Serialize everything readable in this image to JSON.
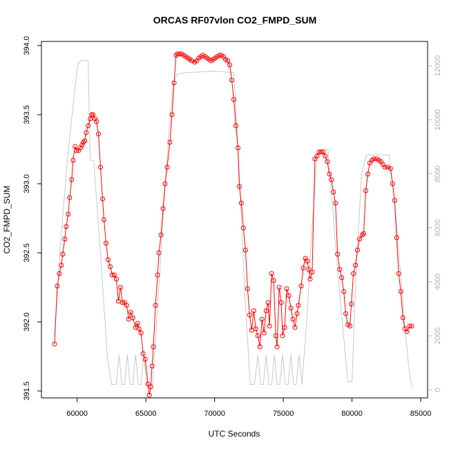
{
  "chart_data": {
    "type": "line",
    "title": "ORCAS RF07vlon CO2_FMPD_SUM",
    "xlabel": "UTC Seconds",
    "ylabel": "CO2_FMPD_SUM",
    "xlim": [
      57400,
      85500
    ],
    "ylim": [
      391.45,
      394.03
    ],
    "y2lim": [
      -300,
      12900
    ],
    "x_ticks": [
      60000,
      65000,
      70000,
      75000,
      80000,
      85000
    ],
    "y_ticks": [
      391.5,
      392.0,
      392.5,
      393.0,
      393.5,
      394.0
    ],
    "y_tick_labels": [
      "391.5",
      "392.0",
      "392.5",
      "393.0",
      "393.5",
      "394.0"
    ],
    "y2_ticks": [
      0,
      2000,
      4000,
      6000,
      8000,
      10000,
      12000
    ],
    "colors": {
      "primary": "#ff0000",
      "secondary": "#c8c8c8"
    },
    "series": [
      {
        "color": "#ff0000",
        "marker": "open-circle",
        "points": [
          [
            58350,
            391.84
          ],
          [
            58550,
            392.26
          ],
          [
            58700,
            392.35
          ],
          [
            58850,
            392.41
          ],
          [
            58950,
            392.49
          ],
          [
            59100,
            392.6
          ],
          [
            59200,
            392.69
          ],
          [
            59350,
            392.78
          ],
          [
            59450,
            392.9
          ],
          [
            59600,
            393.03
          ],
          [
            59700,
            393.17
          ],
          [
            59850,
            393.27
          ],
          [
            59950,
            393.24
          ],
          [
            60100,
            393.24
          ],
          [
            60250,
            393.26
          ],
          [
            60350,
            393.28
          ],
          [
            60450,
            393.3
          ],
          [
            60550,
            393.31
          ],
          [
            60650,
            393.37
          ],
          [
            60800,
            393.42
          ],
          [
            60950,
            393.47
          ],
          [
            61050,
            393.5
          ],
          [
            61150,
            393.5
          ],
          [
            61300,
            393.47
          ],
          [
            61400,
            393.45
          ],
          [
            61550,
            393.36
          ],
          [
            61700,
            393.12
          ],
          [
            61850,
            392.89
          ],
          [
            61950,
            392.74
          ],
          [
            62100,
            392.57
          ],
          [
            62250,
            392.45
          ],
          [
            62400,
            392.4
          ],
          [
            62550,
            392.34
          ],
          [
            62700,
            392.34
          ],
          [
            62850,
            392.31
          ],
          [
            63000,
            392.15
          ],
          [
            63150,
            392.25
          ],
          [
            63300,
            392.14
          ],
          [
            63450,
            392.14
          ],
          [
            63600,
            392.12
          ],
          [
            63750,
            392.02
          ],
          [
            63900,
            392.07
          ],
          [
            64050,
            392.03
          ],
          [
            64250,
            391.96
          ],
          [
            64400,
            391.99
          ],
          [
            64500,
            391.95
          ],
          [
            64650,
            391.92
          ],
          [
            64800,
            391.77
          ],
          [
            64950,
            391.73
          ],
          [
            65150,
            391.55
          ],
          [
            65250,
            391.47
          ],
          [
            65350,
            391.53
          ],
          [
            65450,
            391.68
          ],
          [
            65550,
            391.82
          ],
          [
            65700,
            392.12
          ],
          [
            65850,
            392.34
          ],
          [
            65950,
            392.5
          ],
          [
            66100,
            392.63
          ],
          [
            66250,
            392.82
          ],
          [
            66400,
            393.0
          ],
          [
            66550,
            393.12
          ],
          [
            66750,
            393.3
          ],
          [
            66900,
            393.5
          ],
          [
            67050,
            393.73
          ],
          [
            67200,
            393.93
          ],
          [
            67300,
            393.94
          ],
          [
            67450,
            393.94
          ],
          [
            67600,
            393.94
          ],
          [
            67750,
            393.93
          ],
          [
            67900,
            393.92
          ],
          [
            68050,
            393.91
          ],
          [
            68200,
            393.9
          ],
          [
            68350,
            393.89
          ],
          [
            68550,
            393.88
          ],
          [
            68700,
            393.89
          ],
          [
            68850,
            393.91
          ],
          [
            69000,
            393.92
          ],
          [
            69150,
            393.93
          ],
          [
            69300,
            393.92
          ],
          [
            69450,
            393.91
          ],
          [
            69600,
            393.9
          ],
          [
            69750,
            393.89
          ],
          [
            69900,
            393.9
          ],
          [
            70050,
            393.91
          ],
          [
            70200,
            393.92
          ],
          [
            70350,
            393.93
          ],
          [
            70500,
            393.93
          ],
          [
            70650,
            393.92
          ],
          [
            70800,
            393.9
          ],
          [
            70950,
            393.89
          ],
          [
            71100,
            393.86
          ],
          [
            71250,
            393.75
          ],
          [
            71400,
            393.61
          ],
          [
            71550,
            393.42
          ],
          [
            71700,
            393.26
          ],
          [
            71800,
            392.98
          ],
          [
            71950,
            392.86
          ],
          [
            72100,
            392.68
          ],
          [
            72250,
            392.52
          ],
          [
            72400,
            392.24
          ],
          [
            72550,
            392.05
          ],
          [
            72700,
            391.94
          ],
          [
            72850,
            392.08
          ],
          [
            73000,
            391.95
          ],
          [
            73150,
            391.9
          ],
          [
            73300,
            391.82
          ],
          [
            73450,
            392.02
          ],
          [
            73600,
            391.92
          ],
          [
            73750,
            392.08
          ],
          [
            73900,
            392.14
          ],
          [
            74000,
            391.97
          ],
          [
            74150,
            392.35
          ],
          [
            74300,
            392.3
          ],
          [
            74450,
            391.9
          ],
          [
            74550,
            391.82
          ],
          [
            74700,
            392.25
          ],
          [
            74850,
            392.14
          ],
          [
            74950,
            391.9
          ],
          [
            75100,
            391.96
          ],
          [
            75250,
            392.24
          ],
          [
            75400,
            392.19
          ],
          [
            75550,
            392.1
          ],
          [
            75700,
            392.02
          ],
          [
            75850,
            391.96
          ],
          [
            76000,
            392.06
          ],
          [
            76100,
            392.12
          ],
          [
            76300,
            392.26
          ],
          [
            76450,
            392.39
          ],
          [
            76600,
            392.46
          ],
          [
            76750,
            392.44
          ],
          [
            76850,
            392.38
          ],
          [
            76950,
            392.31
          ],
          [
            77100,
            392.36
          ],
          [
            77300,
            393.18
          ],
          [
            77450,
            393.2
          ],
          [
            77600,
            393.23
          ],
          [
            77750,
            393.23
          ],
          [
            77900,
            393.23
          ],
          [
            78050,
            393.2
          ],
          [
            78200,
            393.16
          ],
          [
            78350,
            393.07
          ],
          [
            78500,
            393.03
          ],
          [
            78650,
            392.94
          ],
          [
            78800,
            392.86
          ],
          [
            78950,
            392.49
          ],
          [
            79100,
            392.38
          ],
          [
            79250,
            392.32
          ],
          [
            79400,
            392.22
          ],
          [
            79550,
            392.06
          ],
          [
            79700,
            391.98
          ],
          [
            79850,
            391.97
          ],
          [
            79950,
            392.13
          ],
          [
            80100,
            392.35
          ],
          [
            80250,
            392.41
          ],
          [
            80400,
            392.52
          ],
          [
            80550,
            392.6
          ],
          [
            80750,
            392.63
          ],
          [
            80850,
            392.64
          ],
          [
            81000,
            392.95
          ],
          [
            81150,
            393.07
          ],
          [
            81300,
            393.15
          ],
          [
            81450,
            393.17
          ],
          [
            81600,
            393.18
          ],
          [
            81800,
            393.18
          ],
          [
            81950,
            393.17
          ],
          [
            82100,
            393.16
          ],
          [
            82250,
            393.14
          ],
          [
            82400,
            393.12
          ],
          [
            82600,
            393.12
          ],
          [
            82800,
            393.11
          ],
          [
            82950,
            393.0
          ],
          [
            83100,
            392.88
          ],
          [
            83250,
            392.61
          ],
          [
            83400,
            392.35
          ],
          [
            83550,
            392.22
          ],
          [
            83700,
            392.03
          ],
          [
            83850,
            391.95
          ],
          [
            84000,
            391.93
          ],
          [
            84200,
            391.97
          ],
          [
            84350,
            391.97
          ]
        ]
      },
      {
        "color": "#c8c8c8",
        "marker": "none",
        "axis": "right",
        "points": [
          [
            58350,
            2000
          ],
          [
            58800,
            5500
          ],
          [
            59300,
            8600
          ],
          [
            59800,
            11000
          ],
          [
            60050,
            12100
          ],
          [
            60300,
            12200
          ],
          [
            60800,
            12200
          ],
          [
            60950,
            8500
          ],
          [
            61200,
            8500
          ],
          [
            61700,
            5000
          ],
          [
            62200,
            1200
          ],
          [
            62500,
            200
          ],
          [
            62850,
            200
          ],
          [
            63050,
            1300
          ],
          [
            63250,
            200
          ],
          [
            63450,
            200
          ],
          [
            63650,
            1300
          ],
          [
            63850,
            200
          ],
          [
            64050,
            200
          ],
          [
            64250,
            1300
          ],
          [
            64450,
            200
          ],
          [
            64650,
            200
          ],
          [
            64850,
            1300
          ],
          [
            65050,
            200
          ],
          [
            65500,
            200
          ],
          [
            65900,
            3500
          ],
          [
            66300,
            6800
          ],
          [
            66700,
            9700
          ],
          [
            67000,
            11400
          ],
          [
            67300,
            11700
          ],
          [
            68000,
            11750
          ],
          [
            70000,
            11800
          ],
          [
            71400,
            11750
          ],
          [
            71800,
            8000
          ],
          [
            72200,
            3500
          ],
          [
            72600,
            200
          ],
          [
            72900,
            200
          ],
          [
            73150,
            1300
          ],
          [
            73350,
            200
          ],
          [
            73550,
            200
          ],
          [
            73750,
            1300
          ],
          [
            73950,
            200
          ],
          [
            74150,
            200
          ],
          [
            74350,
            1300
          ],
          [
            74550,
            200
          ],
          [
            74750,
            200
          ],
          [
            74950,
            1300
          ],
          [
            75150,
            200
          ],
          [
            75350,
            200
          ],
          [
            75550,
            1300
          ],
          [
            75750,
            200
          ],
          [
            75950,
            200
          ],
          [
            76150,
            1300
          ],
          [
            76350,
            200
          ],
          [
            76700,
            2500
          ],
          [
            77100,
            6000
          ],
          [
            77450,
            8700
          ],
          [
            77750,
            8900
          ],
          [
            78250,
            8900
          ],
          [
            78700,
            6000
          ],
          [
            79200,
            3000
          ],
          [
            79700,
            300
          ],
          [
            80000,
            300
          ],
          [
            80300,
            4500
          ],
          [
            80700,
            8000
          ],
          [
            81050,
            8700
          ],
          [
            81500,
            8700
          ],
          [
            82700,
            8700
          ],
          [
            83100,
            7000
          ],
          [
            83500,
            4500
          ],
          [
            83900,
            2000
          ],
          [
            84200,
            500
          ],
          [
            84400,
            100
          ]
        ]
      }
    ]
  }
}
